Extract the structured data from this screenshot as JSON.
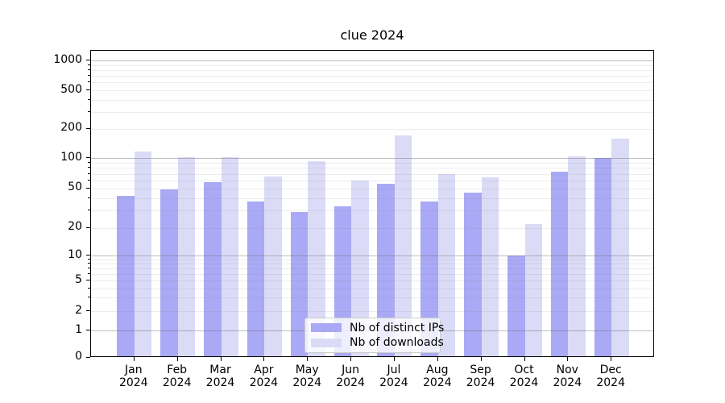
{
  "title": "clue 2024",
  "chart_data": {
    "type": "bar",
    "title": "clue 2024",
    "categories": [
      "Jan 2024",
      "Feb 2024",
      "Mar 2024",
      "Apr 2024",
      "May 2024",
      "Jun 2024",
      "Jul 2024",
      "Aug 2024",
      "Sep 2024",
      "Oct 2024",
      "Nov 2024",
      "Dec 2024"
    ],
    "series": [
      {
        "name": "Nb of distinct IPs",
        "color": "#a9a9f5",
        "values": [
          42,
          49,
          58,
          37,
          29,
          33,
          56,
          37,
          45,
          10,
          74,
          100
        ]
      },
      {
        "name": "Nb of downloads",
        "color": "#dbdbf8",
        "values": [
          117,
          102,
          103,
          66,
          93,
          60,
          170,
          70,
          64,
          22,
          105,
          160
        ]
      }
    ],
    "xlabel": "",
    "ylabel": "",
    "y_axis": {
      "scale": "asinh-like (logarithmic above 1, compressed toward 0)",
      "labeled_ticks": [
        0,
        1,
        2,
        5,
        10,
        20,
        50,
        100,
        200,
        500,
        1000
      ],
      "major_grid_ticks": [
        1,
        10,
        100,
        1000
      ],
      "top_value": 1250
    },
    "grid": "major gray lines at 1/10/100/1000, faint minor lines at 2-9 per decade, drawn over bars",
    "legend_position": "lower center inside plot"
  },
  "legend": {
    "items": [
      {
        "label": "Nb of distinct IPs"
      },
      {
        "label": "Nb of downloads"
      }
    ]
  }
}
